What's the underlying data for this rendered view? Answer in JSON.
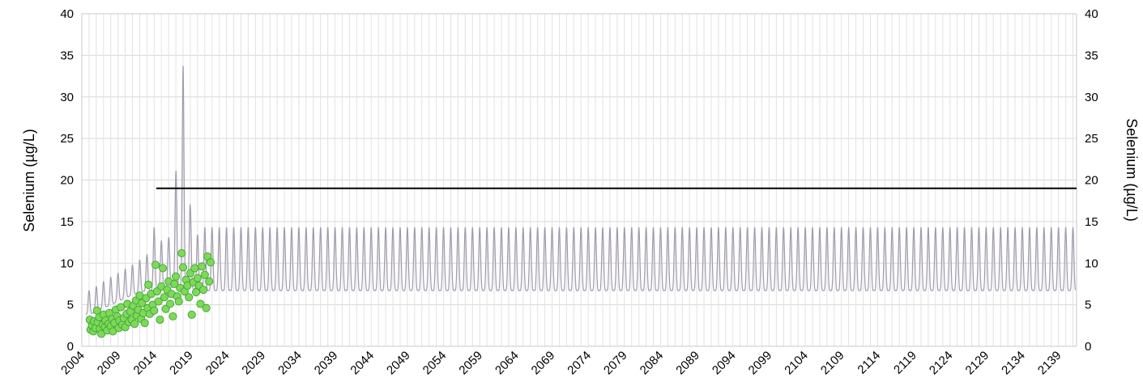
{
  "chart_data": {
    "type": "line",
    "title": "",
    "ylabel_left": "Selenium (µg/L)",
    "ylabel_right": "Selenium (µg/L)",
    "xlim": [
      2004,
      2141.5
    ],
    "ylim": [
      0,
      40
    ],
    "y_ticks": [
      "0",
      "5",
      "10",
      "15",
      "20",
      "25",
      "30",
      "35",
      "40"
    ],
    "x_ticks": [
      "2004",
      "2009",
      "2014",
      "2019",
      "2024",
      "2029",
      "2034",
      "2039",
      "2044",
      "2049",
      "2054",
      "2059",
      "2064",
      "2069",
      "2074",
      "2079",
      "2084",
      "2089",
      "2094",
      "2099",
      "2104",
      "2109",
      "2114",
      "2119",
      "2124",
      "2129",
      "2134",
      "2139"
    ],
    "grid": true,
    "series": [
      {
        "name": "",
        "kind": "seasonal-line",
        "color": "#a09aae",
        "cycle_years": 1,
        "peaks": [
          [
            2005,
            6.7
          ],
          [
            2006,
            7.2
          ],
          [
            2007,
            7.8
          ],
          [
            2008,
            8.3
          ],
          [
            2009,
            8.8
          ],
          [
            2010,
            9.3
          ],
          [
            2011,
            9.8
          ],
          [
            2012,
            10.4
          ],
          [
            2013,
            11.0
          ],
          [
            2014,
            14.3
          ],
          [
            2015,
            12.7
          ],
          [
            2016,
            13.0
          ],
          [
            2017,
            21.0
          ],
          [
            2018,
            33.9
          ],
          [
            2019,
            16.8
          ],
          [
            2020,
            13.4
          ],
          [
            2021,
            14.3
          ],
          [
            2141,
            14.3
          ]
        ],
        "troughs": [
          [
            2005,
            3.8
          ],
          [
            2006,
            4.2
          ],
          [
            2007,
            4.6
          ],
          [
            2008,
            5.0
          ],
          [
            2009,
            5.4
          ],
          [
            2010,
            5.8
          ],
          [
            2011,
            6.2
          ],
          [
            2012,
            6.5
          ],
          [
            2013,
            6.7
          ],
          [
            2014,
            6.8
          ],
          [
            2015,
            7.0
          ],
          [
            2016,
            7.0
          ],
          [
            2017,
            7.2
          ],
          [
            2018,
            7.2
          ],
          [
            2019,
            7.0
          ],
          [
            2020,
            6.8
          ],
          [
            2021,
            6.7
          ],
          [
            2141,
            6.7
          ]
        ]
      },
      {
        "name": "",
        "kind": "threshold",
        "color": "#000000",
        "x": [
          2014.3,
          2141.5
        ],
        "y": [
          19.0,
          19.0
        ]
      },
      {
        "name": "",
        "kind": "scatter",
        "color": "#7ed957",
        "points": [
          [
            2005.1,
            3.2
          ],
          [
            2005.2,
            2.0
          ],
          [
            2005.4,
            2.5
          ],
          [
            2005.6,
            1.8
          ],
          [
            2005.7,
            3.0
          ],
          [
            2005.9,
            2.2
          ],
          [
            2006.1,
            4.3
          ],
          [
            2006.2,
            2.9
          ],
          [
            2006.4,
            3.5
          ],
          [
            2006.5,
            2.1
          ],
          [
            2006.7,
            1.5
          ],
          [
            2006.9,
            2.6
          ],
          [
            2007.0,
            3.8
          ],
          [
            2007.2,
            2.3
          ],
          [
            2007.3,
            3.1
          ],
          [
            2007.5,
            1.9
          ],
          [
            2007.7,
            2.7
          ],
          [
            2007.8,
            4.0
          ],
          [
            2008.0,
            2.4
          ],
          [
            2008.2,
            3.3
          ],
          [
            2008.3,
            1.8
          ],
          [
            2008.5,
            2.8
          ],
          [
            2008.7,
            4.4
          ],
          [
            2008.9,
            3.6
          ],
          [
            2009.1,
            2.2
          ],
          [
            2009.2,
            3.1
          ],
          [
            2009.4,
            4.7
          ],
          [
            2009.6,
            2.6
          ],
          [
            2009.8,
            3.4
          ],
          [
            2010.0,
            2.3
          ],
          [
            2010.2,
            3.9
          ],
          [
            2010.3,
            5.1
          ],
          [
            2010.5,
            2.9
          ],
          [
            2010.7,
            4.2
          ],
          [
            2010.9,
            3.2
          ],
          [
            2011.1,
            4.9
          ],
          [
            2011.3,
            2.7
          ],
          [
            2011.5,
            5.5
          ],
          [
            2011.6,
            3.7
          ],
          [
            2011.8,
            4.4
          ],
          [
            2012.0,
            6.1
          ],
          [
            2012.2,
            3.3
          ],
          [
            2012.3,
            5.2
          ],
          [
            2012.5,
            4.0
          ],
          [
            2012.7,
            2.8
          ],
          [
            2012.9,
            5.8
          ],
          [
            2013.1,
            4.6
          ],
          [
            2013.2,
            7.4
          ],
          [
            2013.4,
            3.9
          ],
          [
            2013.6,
            6.3
          ],
          [
            2013.8,
            5.0
          ],
          [
            2014.0,
            4.3
          ],
          [
            2014.2,
            9.8
          ],
          [
            2014.4,
            6.6
          ],
          [
            2014.6,
            5.4
          ],
          [
            2014.8,
            3.2
          ],
          [
            2015.0,
            7.2
          ],
          [
            2015.2,
            9.4
          ],
          [
            2015.4,
            5.9
          ],
          [
            2015.6,
            4.5
          ],
          [
            2015.8,
            6.8
          ],
          [
            2016.0,
            7.8
          ],
          [
            2016.2,
            5.1
          ],
          [
            2016.4,
            6.3
          ],
          [
            2016.6,
            3.6
          ],
          [
            2016.8,
            7.5
          ],
          [
            2017.0,
            8.4
          ],
          [
            2017.2,
            6.0
          ],
          [
            2017.4,
            5.4
          ],
          [
            2017.6,
            7.0
          ],
          [
            2017.8,
            11.2
          ],
          [
            2018.0,
            9.5
          ],
          [
            2018.2,
            6.6
          ],
          [
            2018.4,
            8.0
          ],
          [
            2018.6,
            7.3
          ],
          [
            2018.8,
            5.9
          ],
          [
            2019.0,
            8.8
          ],
          [
            2019.2,
            3.8
          ],
          [
            2019.4,
            7.7
          ],
          [
            2019.6,
            9.4
          ],
          [
            2019.8,
            6.5
          ],
          [
            2020.0,
            8.2
          ],
          [
            2020.2,
            7.3
          ],
          [
            2020.4,
            5.1
          ],
          [
            2020.6,
            9.6
          ],
          [
            2020.8,
            6.8
          ],
          [
            2021.0,
            8.6
          ],
          [
            2021.2,
            4.6
          ],
          [
            2021.4,
            10.8
          ],
          [
            2021.6,
            7.8
          ],
          [
            2021.8,
            10.1
          ]
        ]
      }
    ]
  }
}
